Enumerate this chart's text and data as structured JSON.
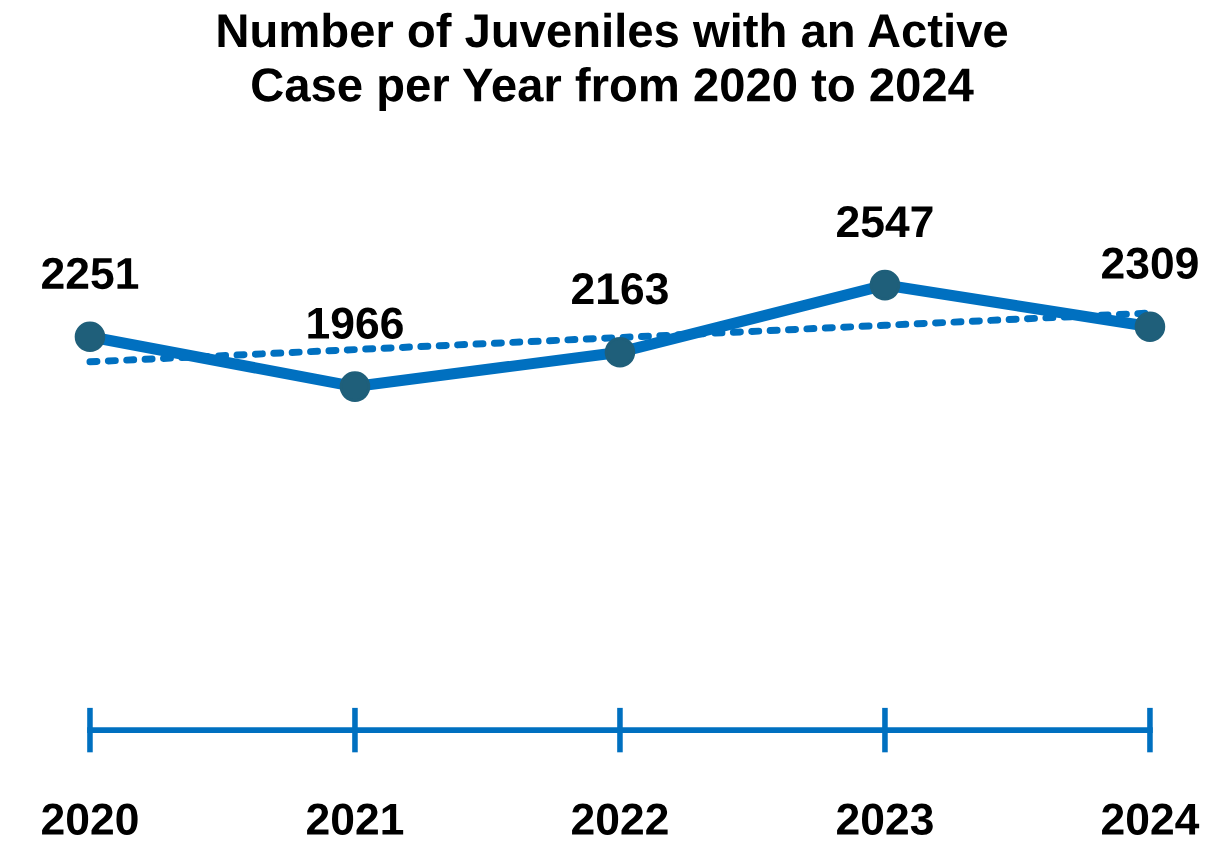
{
  "chart_data": {
    "type": "line",
    "title": "Number of Juveniles with an Active\nCase per Year from 2020 to 2024",
    "categories": [
      "2020",
      "2021",
      "2022",
      "2023",
      "2024"
    ],
    "tick_labels": "x",
    "grid": false,
    "series": [
      {
        "color": "#0070c0",
        "colors": [
          "#1f5f7a",
          "#1f5f7a",
          "#1f5f7a",
          "#1f5f7a",
          "#1f5f7a"
        ],
        "marker": "circle",
        "line_style": "solid",
        "values": [
          2251,
          1966,
          2163,
          2547,
          2309
        ],
        "value_labels": [
          "2251",
          "1966",
          "2163",
          "2547",
          "2309"
        ]
      },
      {
        "type": "line",
        "color": "#0070c0",
        "marker": "none",
        "line_style": "dotted",
        "values": [
          2108,
          2178,
          2247,
          2317,
          2387
        ]
      }
    ]
  }
}
